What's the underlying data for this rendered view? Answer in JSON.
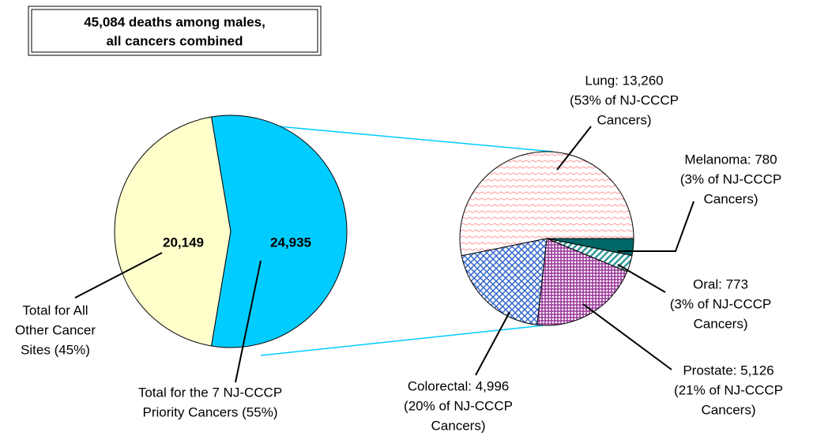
{
  "chart_data": {
    "type": "pie-of-pie",
    "title": [
      "45,084 deaths among males,",
      "all cancers combined"
    ],
    "labels": [
      [
        "Total for All",
        "Other Cancer",
        "Sites (45%)"
      ],
      [
        "Total for the 7 NJ-CCCP",
        "Priority Cancers (55%)"
      ]
    ],
    "values": [
      20149,
      24935
    ],
    "value_labels": [
      "20,149",
      "24,935"
    ],
    "colors": [
      "#ffffcc",
      "#00ccff"
    ],
    "detail": {
      "labels": [
        [
          "Lung: 13,260",
          "(53% of NJ-CCCP",
          "Cancers)"
        ],
        [
          "Melanoma: 780",
          "(3% of NJ-CCCP",
          "Cancers)"
        ],
        [
          "Oral: 773",
          "(3% of NJ-CCCP",
          "Cancers)"
        ],
        [
          "Prostate: 5,126",
          "(21% of NJ-CCCP",
          "Cancers)"
        ],
        [
          "Colorectal: 4,996",
          "(20% of NJ-CCCP",
          "Cancers)"
        ]
      ],
      "values": [
        13260,
        780,
        773,
        5126,
        4996
      ],
      "colors": [
        "#ff9999",
        "#006666",
        "#339999",
        "#993399",
        "#3366cc"
      ],
      "patterns": [
        "wave",
        "solid",
        "stripes",
        "checks",
        "diamonds"
      ]
    }
  }
}
